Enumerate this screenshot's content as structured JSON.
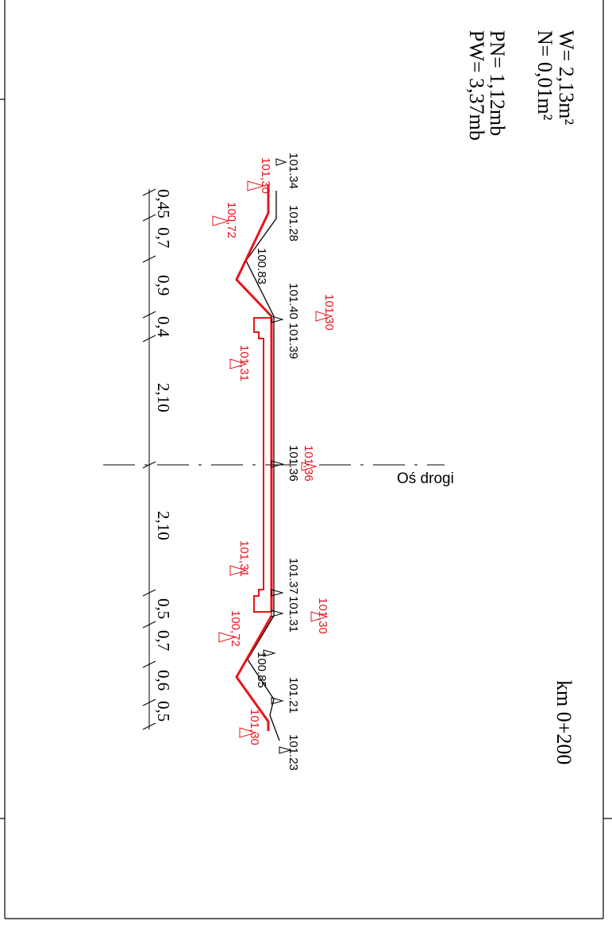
{
  "summary": {
    "w": "W= 2,13m²",
    "n": "N= 0,01m²",
    "pn": "PN= 1,12mb",
    "pw": "PW= 3,37mb"
  },
  "station": "km 0+200",
  "axis_label": "Oś drogi",
  "dimensions": {
    "top": [
      "0,45",
      "0,7",
      "0,9",
      "0,4",
      "2,10"
    ],
    "bottom": [
      "2,10",
      "0,5",
      "0,7",
      "0,6",
      "0,5"
    ]
  },
  "existing_levels": [
    "101.34",
    "101.28",
    "100.83",
    "101.40",
    "101.39",
    "101.36",
    "101.37",
    "101.31",
    "100.85",
    "101.21",
    "101.23"
  ],
  "design_levels": [
    "101,30",
    "100,72",
    "101,30",
    "101,31",
    "101,36",
    "101,31",
    "101,30",
    "100,72",
    "101,30"
  ],
  "colors": {
    "existing": "#000000",
    "design": "#e8141a"
  }
}
